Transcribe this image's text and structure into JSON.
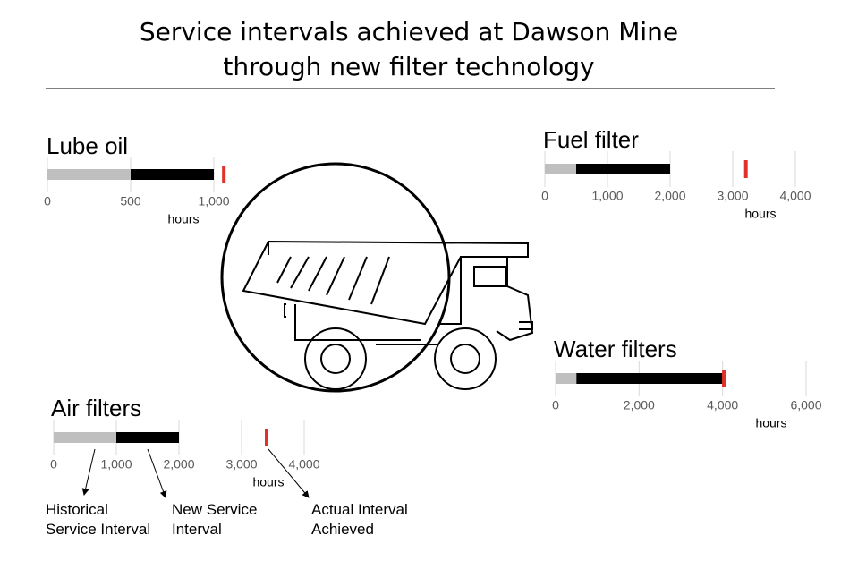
{
  "title": "Service intervals achieved at Dawson Mine through new filter technology",
  "legend": [
    "Historical Service Interval",
    "New Service Interval",
    "Actual Interval Achieved"
  ],
  "colors": [
    "#bfbfbf",
    "#000000",
    "#e0322a"
  ],
  "chart_data": [
    {
      "type": "interval",
      "title": "Lube oil",
      "values": [
        500,
        1000,
        1060
      ],
      "xlabel": "hours",
      "xlim": [
        0,
        1000
      ],
      "xticks": [
        0,
        500,
        {
          "value": 1000,
          "label": "1,000"
        }
      ],
      "grid": true
    },
    {
      "type": "interval",
      "title": "Fuel filter",
      "values": [
        500,
        2000,
        3210
      ],
      "xlabel": "hours",
      "xlim": [
        0,
        4000
      ],
      "xticks": [
        0,
        {
          "value": 1000,
          "label": "1,000"
        },
        {
          "value": 2000,
          "label": "2,000"
        },
        {
          "value": 3000,
          "label": "3,000"
        },
        {
          "value": 4000,
          "label": "4,000"
        }
      ],
      "grid": true
    },
    {
      "type": "interval",
      "title": "Water filters",
      "values": [
        500,
        4000,
        4030
      ],
      "xlabel": "hours",
      "xlim": [
        0,
        6000
      ],
      "xticks": [
        0,
        {
          "value": 2000,
          "label": "2,000"
        },
        {
          "value": 4000,
          "label": "4,000"
        },
        {
          "value": 6000,
          "label": "6,000"
        }
      ],
      "grid": true
    },
    {
      "type": "interval",
      "title": "Air filters",
      "values": [
        1000,
        2000,
        3400
      ],
      "xlabel": "hours",
      "xlim": [
        0,
        4000
      ],
      "xticks": [
        0,
        {
          "value": 1000,
          "label": "1,000"
        },
        {
          "value": 2000,
          "label": "2,000"
        },
        {
          "value": 3000,
          "label": "3,000"
        },
        {
          "value": 4000,
          "label": "4,000"
        }
      ],
      "grid": true
    }
  ]
}
